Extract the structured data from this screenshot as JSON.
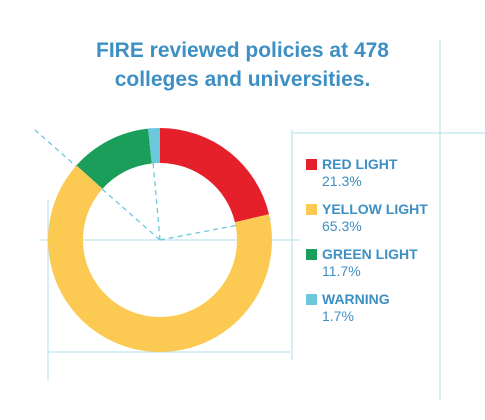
{
  "chart_data": {
    "type": "pie",
    "title": "FIRE reviewed policies at 478 colleges and universities.",
    "categories": [
      "RED LIGHT",
      "YELLOW LIGHT",
      "GREEN LIGHT",
      "WARNING"
    ],
    "values": [
      21.3,
      65.3,
      11.7,
      1.7
    ],
    "value_labels": [
      "21.3%",
      "65.3%",
      "11.7%",
      "1.7%"
    ],
    "colors": [
      "#e5202a",
      "#fcc952",
      "#1a9e5a",
      "#6cc8dc"
    ]
  }
}
